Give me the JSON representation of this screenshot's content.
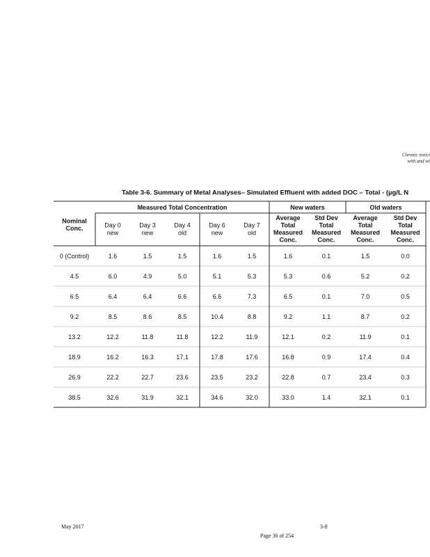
{
  "header": {
    "lines": [
      "Chronic toxici",
      "with and wi"
    ]
  },
  "table": {
    "title": "Table 3-6. Summary of Metal Analyses– Simulated Effluent with added DOC – Total - (µg/L N",
    "group_headers": [
      "Measured Total Concentration",
      "New waters",
      "Old waters"
    ],
    "columns": [
      [
        "Nominal",
        "Conc."
      ],
      [
        "Day 0",
        "new"
      ],
      [
        "Day 3",
        "new"
      ],
      [
        "Day 4",
        "old"
      ],
      [
        "Day 6",
        "new"
      ],
      [
        "Day 7",
        "old"
      ],
      [
        "Average",
        "Total",
        "Measured",
        "Conc."
      ],
      [
        "Std Dev",
        "Total",
        "Measured",
        "Conc."
      ],
      [
        "Average",
        "Total",
        "Measured",
        "Conc."
      ],
      [
        "Std Dev",
        "Total",
        "Measured",
        "Conc."
      ]
    ],
    "rows": [
      [
        "0 (Control)",
        "1.6",
        "1.5",
        "1.5",
        "1.6",
        "1.5",
        "1.6",
        "0.1",
        "1.5",
        "0.0"
      ],
      [
        "4.5",
        "6.0",
        "4.9",
        "5.0",
        "5.1",
        "5.3",
        "5.3",
        "0.6",
        "5.2",
        "0.2"
      ],
      [
        "6.5",
        "6.4",
        "6.4",
        "6.6",
        "6.6",
        "7.3",
        "6.5",
        "0.1",
        "7.0",
        "0.5"
      ],
      [
        "9.2",
        "8.5",
        "8.6",
        "8.5",
        "10.4",
        "8.8",
        "9.2",
        "1.1",
        "8.7",
        "0.2"
      ],
      [
        "13.2",
        "12.2",
        "11.8",
        "11.8",
        "12.2",
        "11.9",
        "12.1",
        "0.2",
        "11.9",
        "0.1"
      ],
      [
        "18.9",
        "16.2",
        "16.3",
        "17.1",
        "17.8",
        "17.6",
        "16.8",
        "0.9",
        "17.4",
        "0.4"
      ],
      [
        "26.9",
        "22.2",
        "22.7",
        "23.6",
        "23.5",
        "23.2",
        "22.8",
        "0.7",
        "23.4",
        "0.3"
      ],
      [
        "38.5",
        "32.6",
        "31.9",
        "32.1",
        "34.6",
        "32.0",
        "33.0",
        "1.4",
        "32.1",
        "0.1"
      ]
    ]
  },
  "footer": {
    "date": "May 2017",
    "section_page": "3-8",
    "page": "Page 36 of 254"
  }
}
